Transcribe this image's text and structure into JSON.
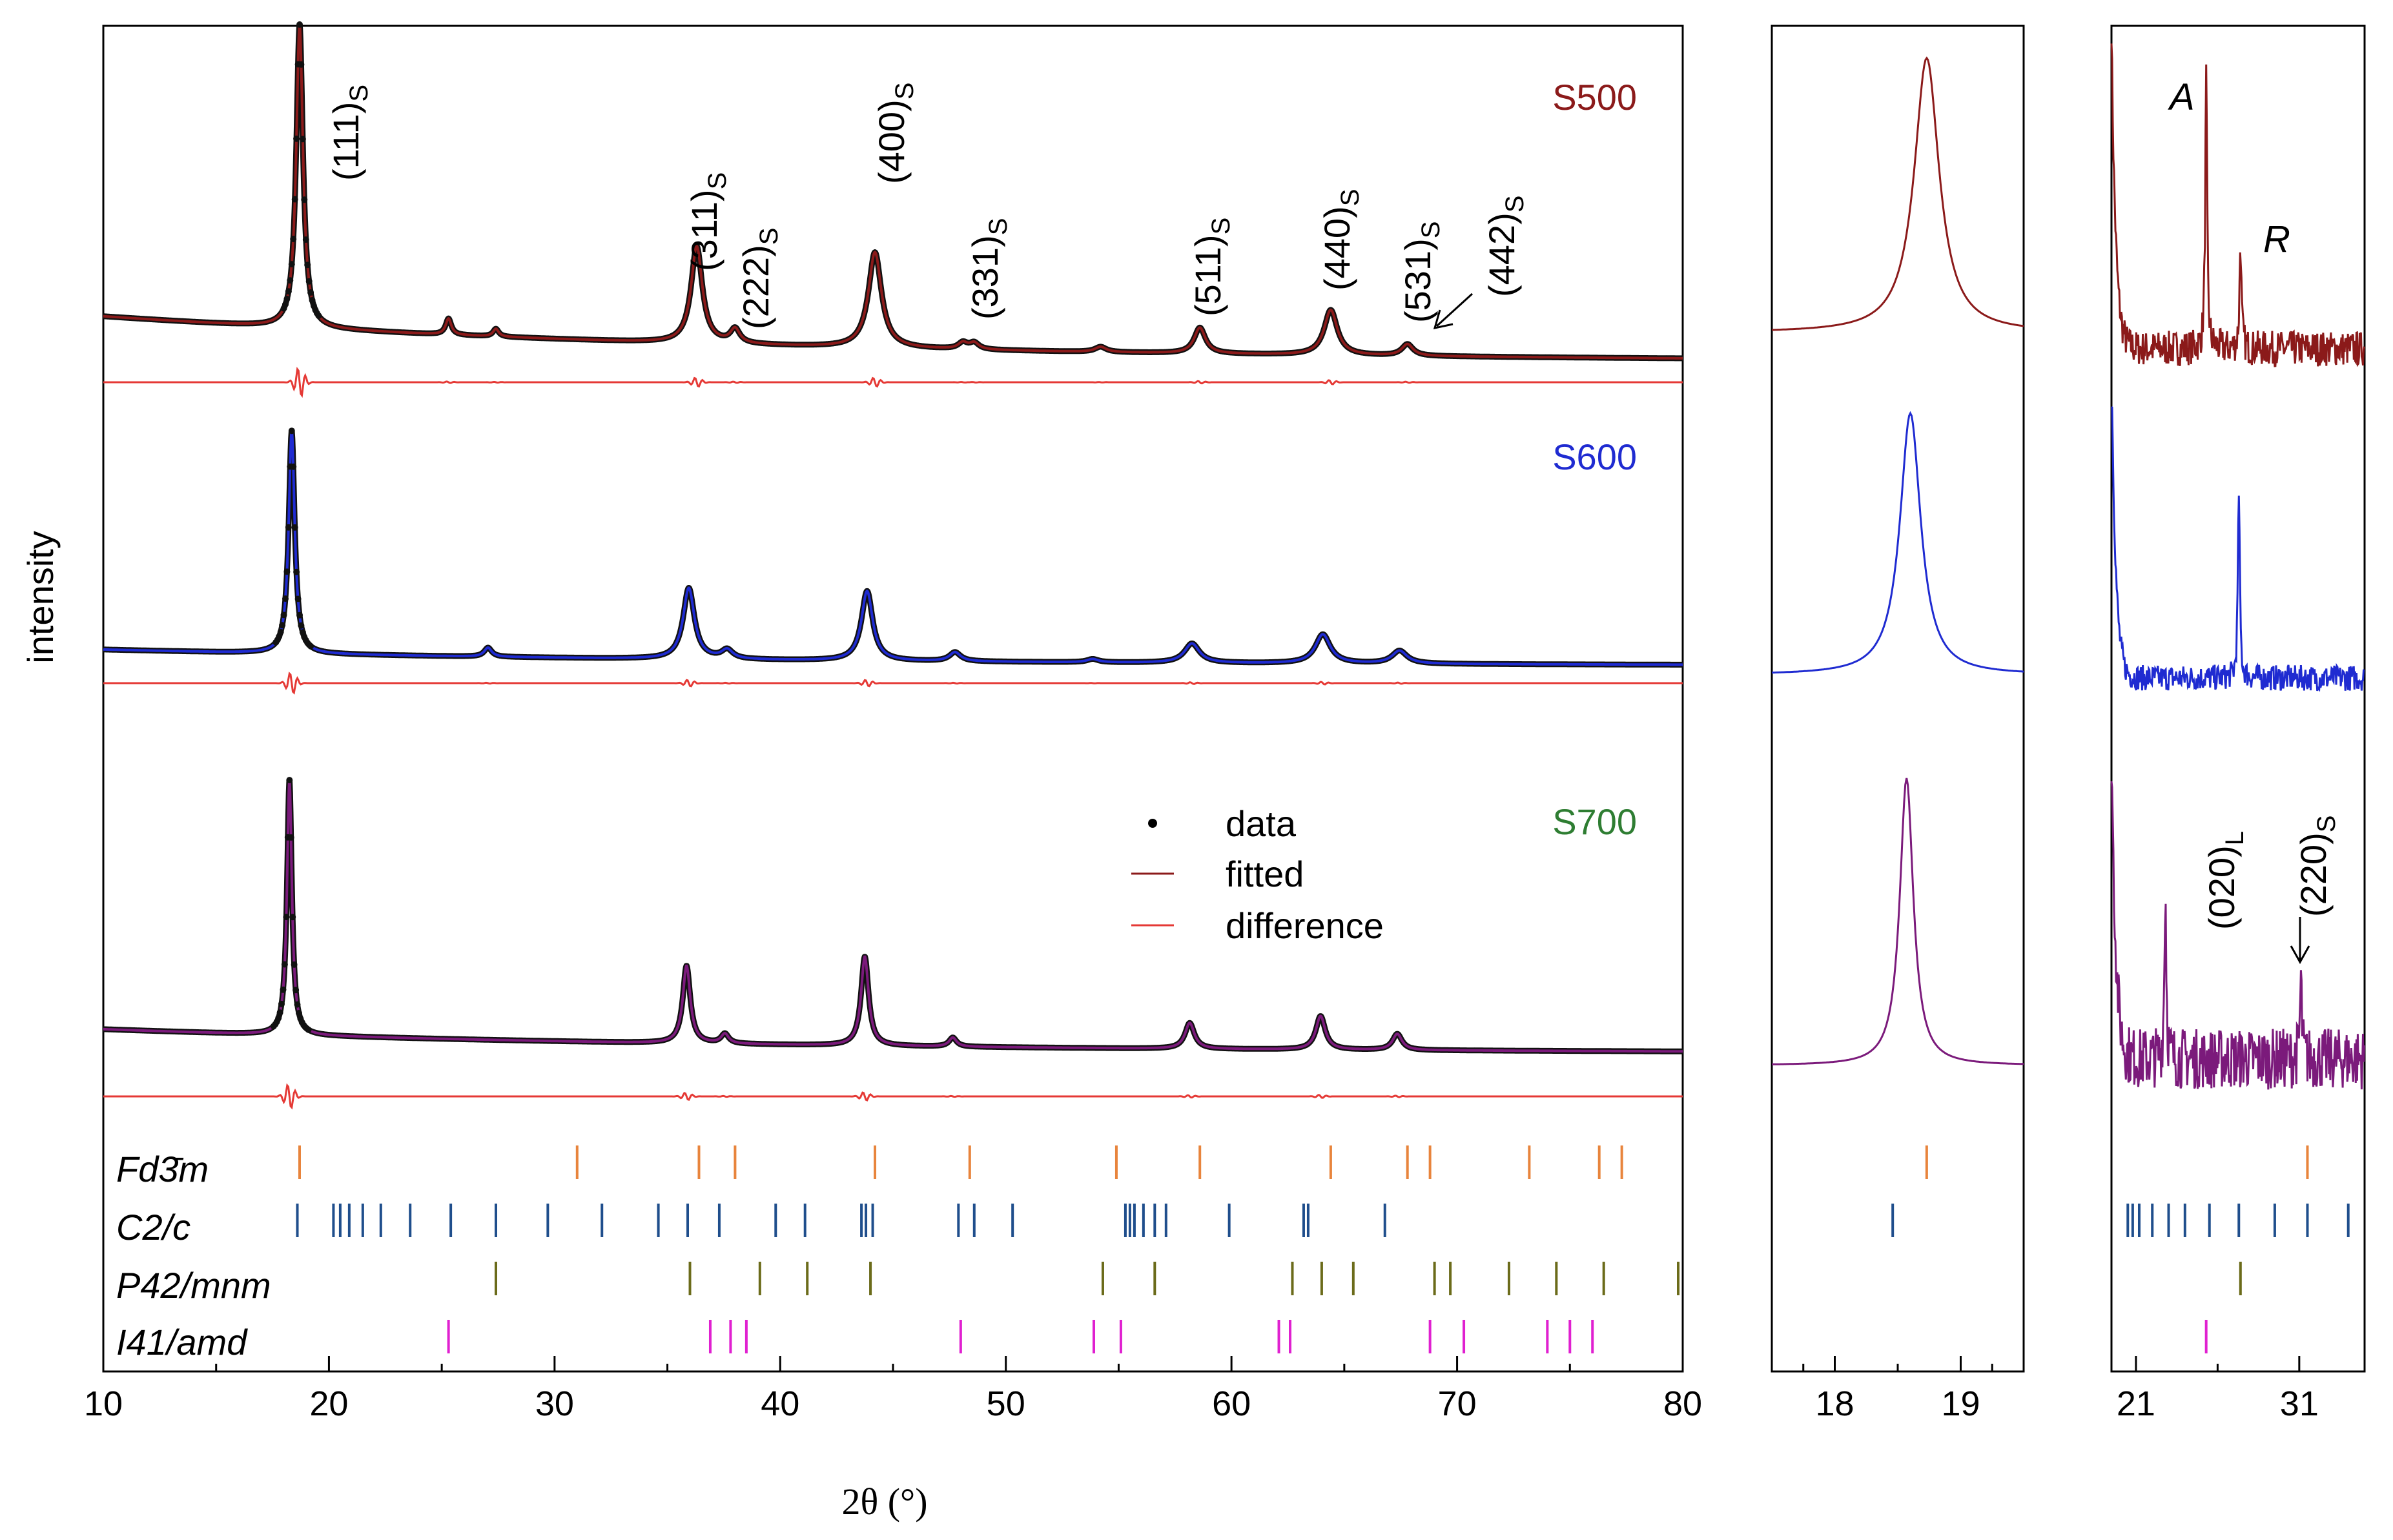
{
  "chart_data": {
    "type": "line",
    "title": "",
    "ylabel": "intensity",
    "main": {
      "xlabel": "2θ (°)",
      "xlim": [
        10,
        80
      ],
      "ticks": [
        10,
        20,
        30,
        40,
        50,
        60,
        70,
        80
      ],
      "tick_labels": [
        "10",
        "20",
        "30",
        "40",
        "50",
        "60",
        "70",
        "80"
      ],
      "peak_positions": [
        18.7,
        25.3,
        27.4,
        36.3,
        38.0,
        44.2,
        48.1,
        48.6,
        54.2,
        58.6,
        64.4,
        67.8
      ],
      "samples": [
        {
          "name": "S500",
          "color": "#8b1a1a"
        },
        {
          "name": "S600",
          "color": "#1f2bd1"
        },
        {
          "name": "S700",
          "color": "#2e7d32",
          "curve_color": "#7b1a7b"
        }
      ],
      "annotations": [
        {
          "main": "(111)",
          "sub": "S"
        },
        {
          "main": "(311)",
          "sub": "S"
        },
        {
          "main": "(222)",
          "sub": "S"
        },
        {
          "main": "(400)",
          "sub": "S"
        },
        {
          "main": "(331)",
          "sub": "S"
        },
        {
          "main": "(511)",
          "sub": "S"
        },
        {
          "main": "(440)",
          "sub": "S"
        },
        {
          "main": "(531)",
          "sub": "S"
        },
        {
          "main": "(442)",
          "sub": "S"
        }
      ],
      "legend": [
        {
          "label": "data",
          "marker": "dot"
        },
        {
          "label": "fitted",
          "marker": "line",
          "color": "#8b1a1a"
        },
        {
          "label": "difference",
          "marker": "line",
          "color": "#e53935"
        }
      ],
      "phases": [
        {
          "name": "Fd3̄m",
          "color": "#e8843c",
          "positions": [
            18.7,
            31.0,
            36.4,
            38.0,
            44.2,
            48.4,
            54.9,
            58.6,
            64.4,
            67.8,
            68.8,
            73.2,
            76.3,
            77.3
          ]
        },
        {
          "name": "C2/c",
          "color": "#1f4e8c",
          "positions": [
            18.6,
            20.2,
            20.5,
            20.9,
            21.5,
            22.3,
            23.6,
            25.4,
            27.4,
            29.7,
            32.1,
            34.6,
            35.9,
            37.3,
            39.8,
            41.1,
            43.6,
            43.8,
            44.1,
            47.9,
            48.6,
            50.3,
            55.3,
            55.5,
            55.7,
            56.1,
            56.6,
            57.1,
            59.9,
            63.2,
            63.4,
            66.8
          ]
        },
        {
          "name": "P42/mnm",
          "color": "#6b6b1a",
          "positions": [
            27.4,
            36.0,
            39.1,
            41.2,
            44.0,
            54.3,
            56.6,
            62.7,
            64.0,
            65.4,
            69.0,
            69.7,
            72.3,
            74.4,
            76.5,
            79.8
          ]
        },
        {
          "name": "I41/amd",
          "color": "#e020d0",
          "positions": [
            25.3,
            36.9,
            37.8,
            38.5,
            48.0,
            53.9,
            55.1,
            62.1,
            62.6,
            68.8,
            70.3,
            74.0,
            75.0,
            76.0
          ]
        }
      ]
    },
    "zoom1": {
      "ticks": [
        18,
        19
      ],
      "tick_labels": [
        "18",
        "19"
      ],
      "xlim": [
        17.5,
        19.5
      ],
      "peak_centers": [
        18.73,
        18.6,
        18.57
      ],
      "phase_ticks": [
        {
          "phase": "Fd3̄m",
          "positions": [
            18.73
          ]
        },
        {
          "phase": "C2/c",
          "positions": [
            18.46
          ]
        }
      ]
    },
    "zoom2": {
      "ticks": [
        21,
        31
      ],
      "tick_labels": [
        "21",
        "31"
      ],
      "xlim": [
        19.5,
        35
      ],
      "labels": [
        {
          "text": "A"
        },
        {
          "text": "R"
        },
        {
          "main": "(020)",
          "sub": "L"
        },
        {
          "main": "(220)",
          "sub": "S"
        }
      ],
      "phase_ticks": [
        {
          "phase": "Fd3̄m",
          "positions": [
            31.5
          ]
        },
        {
          "phase": "C2/c",
          "positions": [
            20.5,
            20.8,
            21.2,
            22.0,
            23.0,
            24.0,
            25.5,
            27.3,
            29.5,
            31.5,
            34.0
          ]
        },
        {
          "phase": "P42/mnm",
          "positions": [
            27.4
          ]
        },
        {
          "phase": "I41/amd",
          "positions": [
            25.3
          ]
        }
      ]
    }
  }
}
